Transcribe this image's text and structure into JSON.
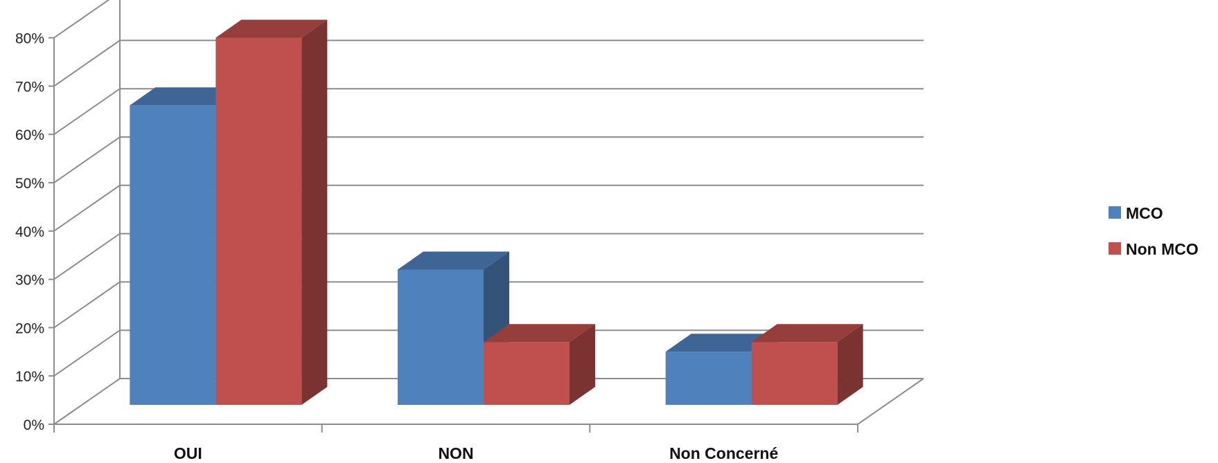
{
  "chart_data": {
    "type": "bar",
    "title": "",
    "xlabel": "",
    "ylabel": "",
    "ylim": [
      0,
      0.9
    ],
    "yticks": [
      0,
      0.1,
      0.2,
      0.3,
      0.4,
      0.5,
      0.6,
      0.7,
      0.8
    ],
    "ytick_labels": [
      "0%",
      "10%",
      "20%",
      "30%",
      "40%",
      "50%",
      "60%",
      "70%",
      "80%"
    ],
    "categories": [
      "OUI",
      "NON",
      "Non Concerné"
    ],
    "series": [
      {
        "name": "MCO",
        "values": [
          0.62,
          0.28,
          0.11
        ],
        "color": "#4F81BD"
      },
      {
        "name": "Non MCO",
        "values": [
          0.76,
          0.13,
          0.13
        ],
        "color": "#C0504D"
      }
    ],
    "grid": true,
    "legend_position": "right",
    "style": "3d-clustered-column"
  }
}
